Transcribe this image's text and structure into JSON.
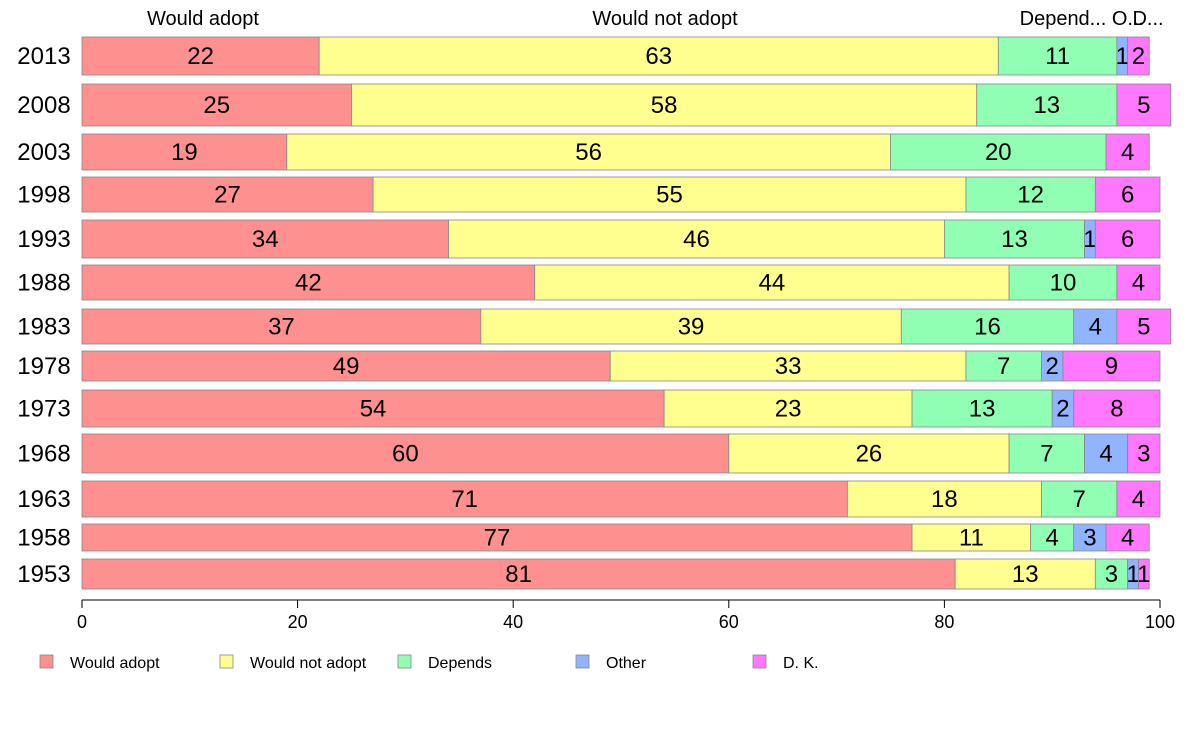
{
  "chart_data": {
    "type": "bar",
    "orientation": "horizontal",
    "stacked": true,
    "categories": [
      "2013",
      "2008",
      "2003",
      "1998",
      "1993",
      "1988",
      "1983",
      "1978",
      "1973",
      "1968",
      "1963",
      "1958",
      "1953"
    ],
    "series": [
      {
        "name": "Would adopt",
        "color": "#ff9090",
        "values": [
          22,
          25,
          19,
          27,
          34,
          42,
          37,
          49,
          54,
          60,
          71,
          77,
          81
        ]
      },
      {
        "name": "Would not adopt",
        "color": "#ffff90",
        "values": [
          63,
          58,
          56,
          55,
          46,
          44,
          39,
          33,
          23,
          26,
          18,
          11,
          13
        ]
      },
      {
        "name": "Depends",
        "color": "#90ffb4",
        "values": [
          11,
          13,
          20,
          12,
          13,
          10,
          16,
          7,
          13,
          7,
          7,
          4,
          3
        ]
      },
      {
        "name": "Other",
        "color": "#90b4ff",
        "values": [
          1,
          0,
          0,
          0,
          1,
          0,
          4,
          2,
          2,
          4,
          0,
          3,
          1
        ]
      },
      {
        "name": "D. K.",
        "color": "#ff78ff",
        "values": [
          2,
          5,
          4,
          6,
          6,
          4,
          5,
          9,
          8,
          3,
          4,
          4,
          1
        ]
      }
    ],
    "top_labels": [
      "Would adopt",
      "Would not adopt",
      "Depend...",
      "O...",
      "D..."
    ],
    "xlim": [
      0,
      100
    ],
    "xticks": [
      0,
      20,
      40,
      60,
      80,
      100
    ],
    "xlabel": "",
    "ylabel": "",
    "title": "",
    "grid": false,
    "legend_position": "bottom"
  }
}
